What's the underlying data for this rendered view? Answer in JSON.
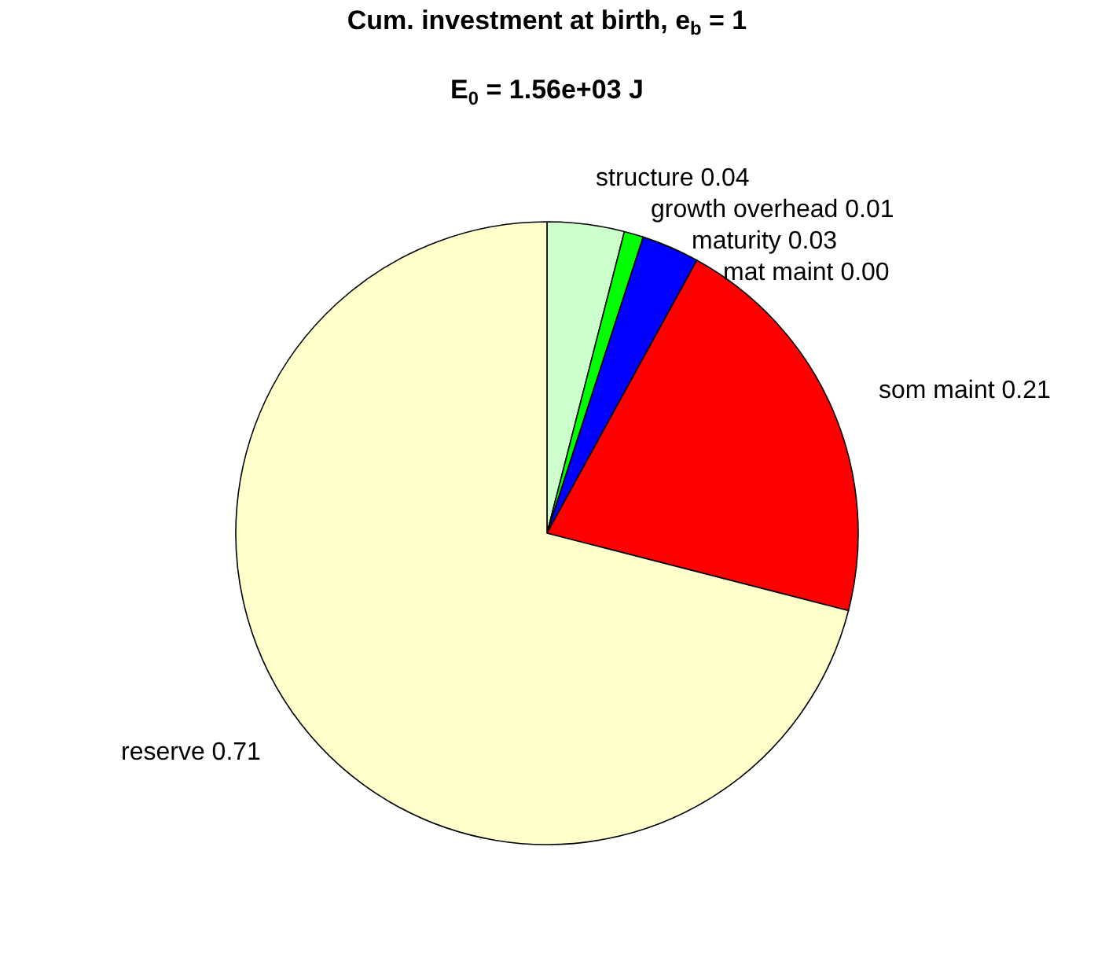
{
  "chart_data": {
    "type": "pie",
    "title": "Cum. investment at birth, e$_{b}$ = 1",
    "subtitle": "E$_{0}$ = 1.56e+03 J",
    "categories": [
      "structure",
      "growth overhead",
      "maturity",
      "mat maint",
      "som maint",
      "reserve"
    ],
    "values": [
      0.04,
      0.01,
      0.03,
      0.0,
      0.21,
      0.71
    ],
    "value_labels": [
      "0.04",
      "0.01",
      "0.03",
      "0.00",
      "0.21",
      "0.71"
    ],
    "colors": [
      "#ccffcc",
      "#00ff00",
      "#0000ff",
      "#ff00ff",
      "#ff0000",
      "#ffffcc"
    ],
    "legend": false
  }
}
